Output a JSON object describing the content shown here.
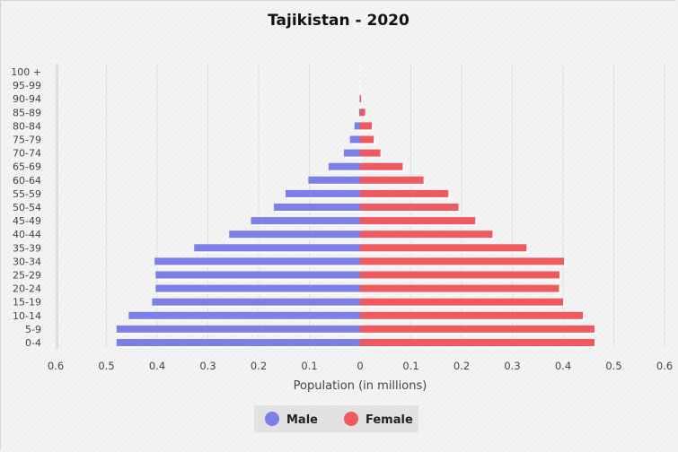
{
  "chart_data": {
    "type": "bar",
    "orientation": "horizontal",
    "title": "Tajikistan - 2020",
    "xlabel": "Population (in millions)",
    "ylabel": "",
    "xlim": [
      -0.6,
      0.6
    ],
    "x_ticks": [
      "0.6",
      "0.5",
      "0.4",
      "0.3",
      "0.2",
      "0.1",
      "0",
      "0.1",
      "0.2",
      "0.3",
      "0.4",
      "0.5",
      "0.6"
    ],
    "grid": true,
    "legend_position": "bottom",
    "categories": [
      "100 +",
      "95-99",
      "90-94",
      "85-89",
      "80-84",
      "75-79",
      "70-74",
      "65-69",
      "60-64",
      "55-59",
      "50-54",
      "45-49",
      "40-44",
      "35-39",
      "30-34",
      "25-29",
      "20-24",
      "15-19",
      "10-14",
      "5-9",
      "0-4"
    ],
    "series": [
      {
        "name": "Male",
        "color": "#7b7fe8",
        "values": [
          0.0,
          0.0,
          0.001,
          0.002,
          0.011,
          0.02,
          0.032,
          0.062,
          0.102,
          0.147,
          0.17,
          0.215,
          0.258,
          0.327,
          0.405,
          0.403,
          0.403,
          0.41,
          0.456,
          0.48,
          0.48
        ]
      },
      {
        "name": "Female",
        "color": "#ee5a5e",
        "values": [
          0.0,
          0.0,
          0.002,
          0.01,
          0.023,
          0.027,
          0.04,
          0.084,
          0.125,
          0.174,
          0.194,
          0.227,
          0.261,
          0.328,
          0.402,
          0.393,
          0.392,
          0.4,
          0.439,
          0.462,
          0.462
        ]
      }
    ]
  }
}
